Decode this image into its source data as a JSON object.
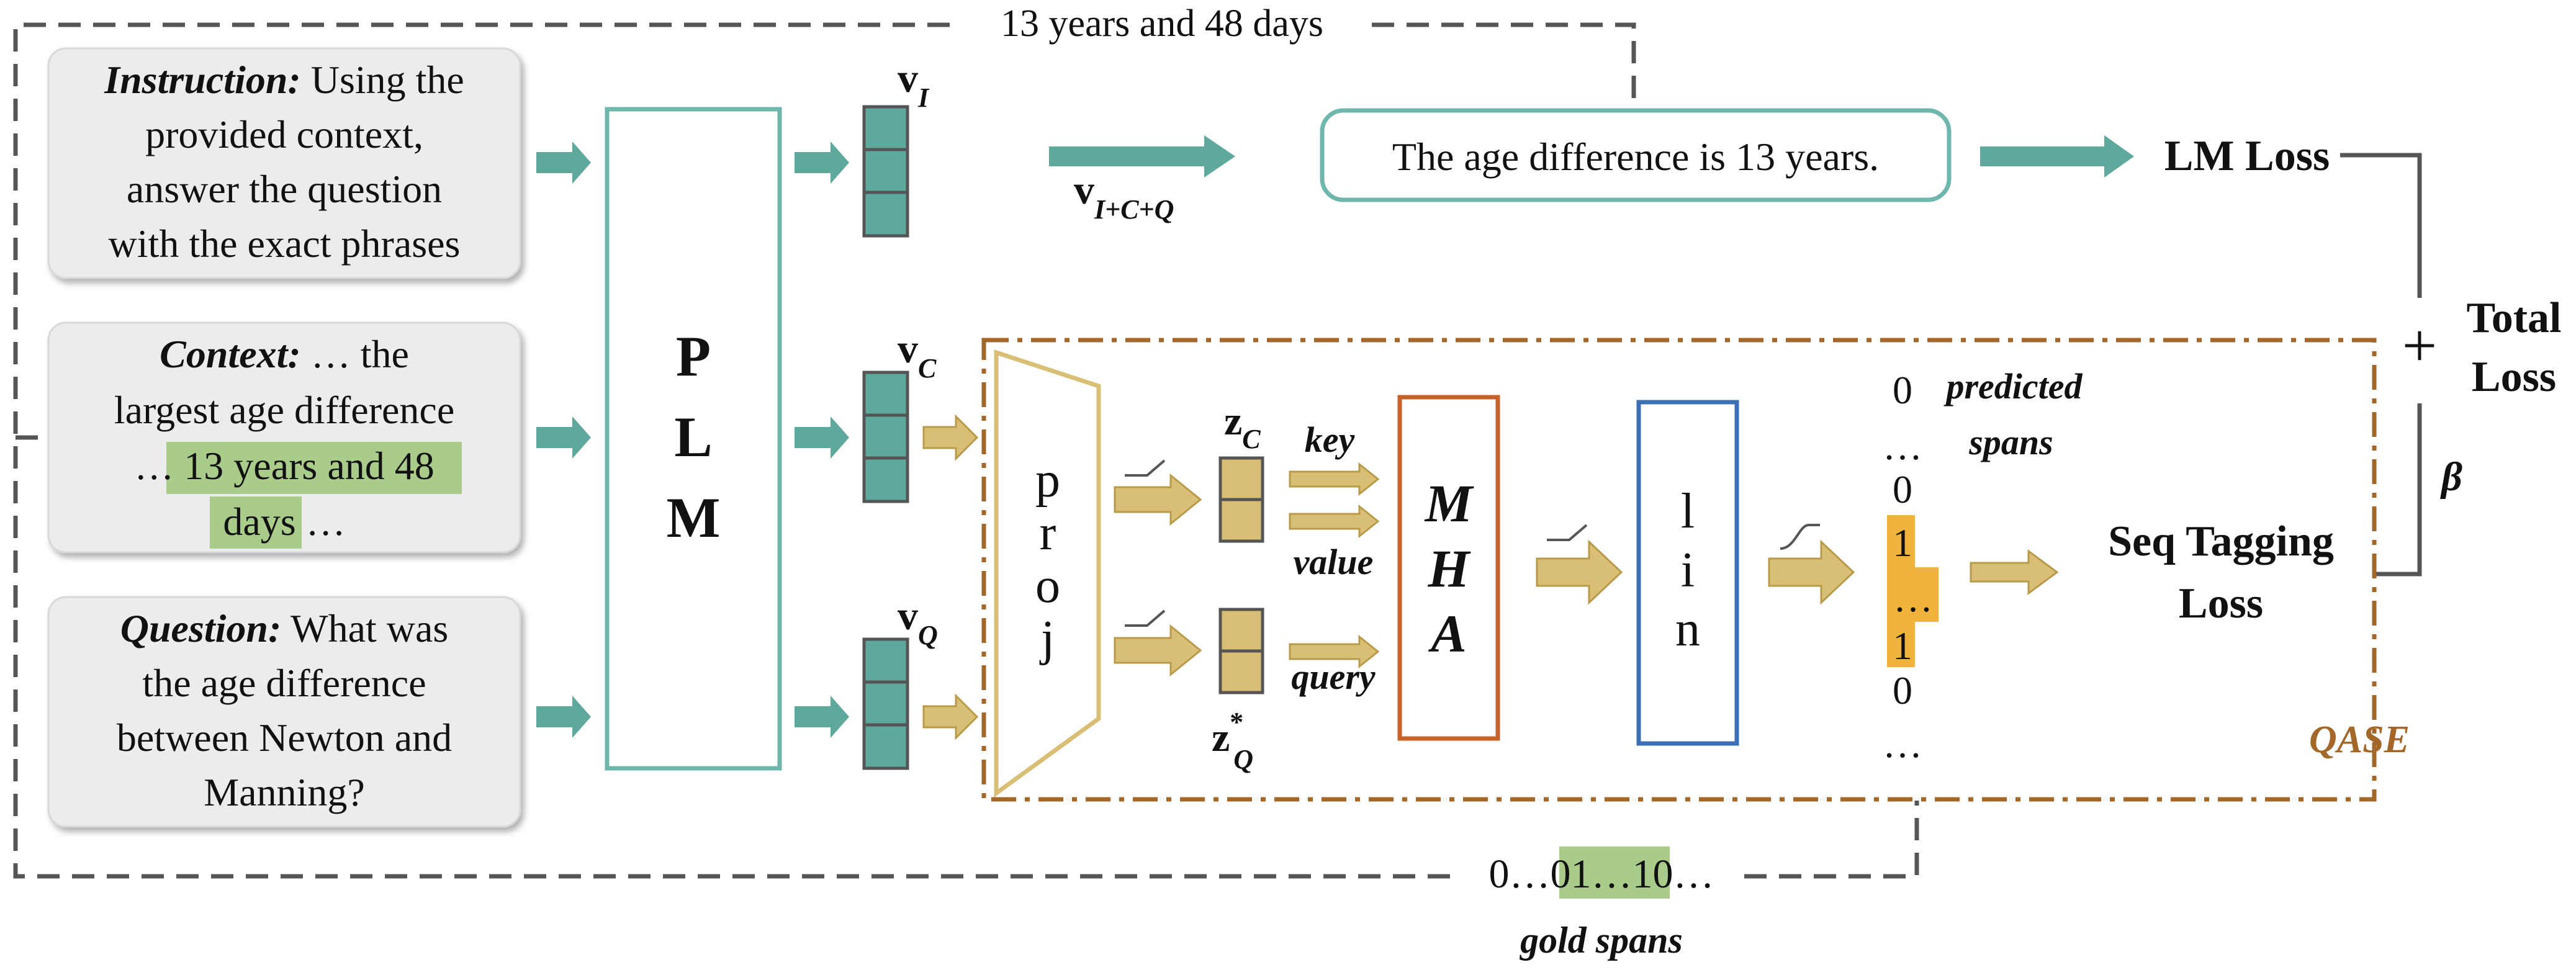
{
  "inputs": {
    "instruction": {
      "label": "Instruction:",
      "lines": [
        "Using the",
        "provided context,",
        "answer the question",
        "with the exact phrases"
      ]
    },
    "context": {
      "label": "Context:",
      "line1": "… the",
      "line2": "largest age difference",
      "line3_prefix": "…",
      "highlight_a": "13 years and 48",
      "highlight_b": "days",
      "line4_suffix": "…"
    },
    "question": {
      "label": "Question:",
      "lines": [
        "What was",
        "the age difference",
        "between Newton and",
        "Manning?"
      ]
    }
  },
  "plm": {
    "letters": [
      "P",
      "L",
      "M"
    ]
  },
  "vectors": {
    "vi": {
      "base": "v",
      "sub": "I"
    },
    "vc": {
      "base": "v",
      "sub": "C"
    },
    "vq": {
      "base": "v",
      "sub": "Q"
    },
    "vicq": {
      "base": "v",
      "sub": "I+C+Q"
    }
  },
  "top_output": {
    "text": "The age difference is 13 years.",
    "lm_loss": "LM Loss"
  },
  "loop_label": "13 years and 48 days",
  "total": {
    "plus": "+",
    "line1": "Total",
    "line2": "Loss",
    "beta": "β"
  },
  "qase": {
    "name": "QASE",
    "proj_letters": [
      "p",
      "r",
      "o",
      "j"
    ],
    "zc": {
      "base": "z",
      "sub": "C"
    },
    "zq": {
      "base": "z",
      "sup": "*",
      "sub": "Q"
    },
    "key": "key",
    "value": "value",
    "query": "query",
    "mha_letters": [
      "M",
      "H",
      "A"
    ],
    "lin_letters": [
      "l",
      "i",
      "n"
    ],
    "seq": [
      "0",
      "…",
      "0",
      "1",
      "…",
      "1",
      "0",
      "…"
    ],
    "predicted": [
      "predicted",
      "spans"
    ],
    "seq_loss": [
      "Seq Tagging",
      "Loss"
    ]
  },
  "gold": {
    "prefix": "0…0",
    "highlight": "1…1",
    "suffix": "0…",
    "label": "gold spans"
  },
  "colors": {
    "teal": "#5fa89c",
    "teal_border": "#6fb7ad",
    "gold": "#c6a757",
    "gold_fill": "#d9bf75",
    "qase_border": "#a4672a",
    "mha_border": "#c5632a",
    "lin_border": "#3d6fb4",
    "highlight_green": "#a9cc8b",
    "highlight_orange": "#f0b33c",
    "box_gray": "#ececec",
    "dashed_gray": "#555555"
  }
}
